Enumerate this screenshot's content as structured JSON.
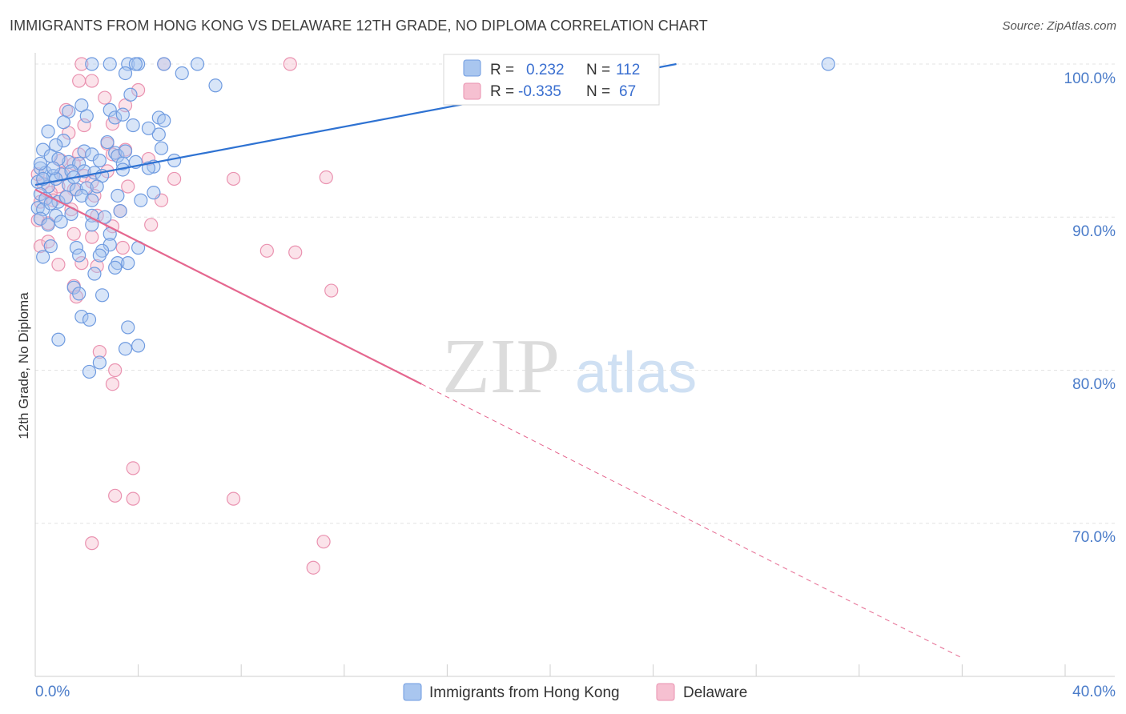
{
  "title": "IMMIGRANTS FROM HONG KONG VS DELAWARE 12TH GRADE, NO DIPLOMA CORRELATION CHART",
  "source": "Source: ZipAtlas.com",
  "watermark": {
    "zip": "ZIP",
    "atlas": "atlas"
  },
  "colors": {
    "blue_fill": "#a9c6ef",
    "blue_stroke": "#6f9be0",
    "blue_line": "#2e72d2",
    "pink_fill": "#f6c0d1",
    "pink_stroke": "#ea92b0",
    "pink_line": "#e5678f",
    "tick_text": "#4b7cc9",
    "grid": "#e3e3e3"
  },
  "stats": {
    "r_label": "R =",
    "n_label": "N =",
    "series1": {
      "r": "0.232",
      "n": "112"
    },
    "series2": {
      "r": "-0.335",
      "n": "67"
    }
  },
  "chart_data": {
    "type": "scatter",
    "title": "IMMIGRANTS FROM HONG KONG VS DELAWARE 12TH GRADE, NO DIPLOMA CORRELATION CHART",
    "xlabel": "",
    "ylabel": "12th Grade, No Diploma",
    "xlim": [
      0,
      40
    ],
    "ylim": [
      60,
      100
    ],
    "x_tick_labels": [
      "0.0%",
      "40.0%"
    ],
    "y_ticks": [
      {
        "value": 100,
        "label": "100.0%"
      },
      {
        "value": 90,
        "label": "90.0%"
      },
      {
        "value": 80,
        "label": "80.0%"
      },
      {
        "value": 70,
        "label": "70.0%"
      }
    ],
    "legend": [
      "Immigrants from Hong Kong",
      "Delaware"
    ],
    "series": [
      {
        "name": "Immigrants from Hong Kong",
        "r": 0.232,
        "n": 112,
        "trend": {
          "x0": 0.0,
          "y0": 92.1,
          "x1": 24.9,
          "y1": 100.0
        },
        "points": [
          [
            3.6,
            100
          ],
          [
            4.0,
            100
          ],
          [
            2.2,
            100
          ],
          [
            2.9,
            100
          ],
          [
            3.9,
            100
          ],
          [
            6.3,
            100
          ],
          [
            5.0,
            100
          ],
          [
            30.8,
            100
          ],
          [
            3.5,
            99.4
          ],
          [
            5.7,
            99.4
          ],
          [
            7.0,
            98.6
          ],
          [
            3.7,
            98.0
          ],
          [
            1.8,
            97.3
          ],
          [
            1.3,
            96.9
          ],
          [
            2.9,
            97.0
          ],
          [
            3.1,
            96.5
          ],
          [
            2.0,
            96.6
          ],
          [
            1.1,
            96.2
          ],
          [
            3.4,
            96.7
          ],
          [
            4.8,
            96.5
          ],
          [
            5.0,
            96.3
          ],
          [
            3.8,
            96.0
          ],
          [
            0.5,
            95.6
          ],
          [
            1.1,
            95.0
          ],
          [
            2.8,
            94.9
          ],
          [
            4.8,
            95.4
          ],
          [
            4.4,
            95.8
          ],
          [
            0.8,
            94.7
          ],
          [
            0.3,
            94.4
          ],
          [
            1.9,
            94.3
          ],
          [
            2.2,
            94.1
          ],
          [
            3.1,
            94.2
          ],
          [
            3.2,
            94.0
          ],
          [
            3.5,
            94.3
          ],
          [
            4.9,
            94.5
          ],
          [
            0.6,
            94.0
          ],
          [
            1.3,
            93.6
          ],
          [
            1.7,
            93.5
          ],
          [
            2.5,
            93.7
          ],
          [
            3.4,
            93.5
          ],
          [
            3.9,
            93.6
          ],
          [
            4.6,
            93.3
          ],
          [
            5.4,
            93.7
          ],
          [
            0.2,
            93.2
          ],
          [
            0.4,
            92.9
          ],
          [
            0.7,
            92.7
          ],
          [
            1.0,
            92.8
          ],
          [
            1.4,
            93.0
          ],
          [
            1.9,
            93.0
          ],
          [
            2.3,
            92.9
          ],
          [
            2.6,
            92.7
          ],
          [
            3.4,
            93.1
          ],
          [
            4.4,
            93.2
          ],
          [
            0.1,
            92.3
          ],
          [
            0.5,
            92.0
          ],
          [
            0.8,
            92.5
          ],
          [
            1.3,
            92.1
          ],
          [
            1.6,
            91.8
          ],
          [
            2.0,
            91.9
          ],
          [
            2.4,
            92.0
          ],
          [
            0.2,
            91.5
          ],
          [
            0.4,
            91.2
          ],
          [
            0.9,
            91.0
          ],
          [
            1.2,
            91.3
          ],
          [
            1.8,
            91.4
          ],
          [
            2.2,
            91.1
          ],
          [
            3.2,
            91.4
          ],
          [
            4.1,
            91.1
          ],
          [
            4.6,
            91.6
          ],
          [
            0.1,
            90.6
          ],
          [
            0.3,
            90.5
          ],
          [
            0.6,
            90.9
          ],
          [
            0.8,
            90.1
          ],
          [
            1.4,
            90.2
          ],
          [
            2.2,
            90.1
          ],
          [
            2.7,
            90.0
          ],
          [
            3.3,
            90.4
          ],
          [
            0.2,
            89.9
          ],
          [
            0.5,
            89.5
          ],
          [
            1.0,
            89.7
          ],
          [
            2.2,
            89.5
          ],
          [
            2.9,
            88.9
          ],
          [
            0.6,
            88.1
          ],
          [
            1.6,
            88.0
          ],
          [
            2.9,
            88.2
          ],
          [
            4.0,
            88.0
          ],
          [
            0.3,
            87.4
          ],
          [
            1.7,
            87.5
          ],
          [
            2.6,
            87.8
          ],
          [
            2.5,
            87.5
          ],
          [
            3.2,
            87.0
          ],
          [
            3.6,
            87.0
          ],
          [
            3.1,
            86.7
          ],
          [
            2.3,
            86.3
          ],
          [
            1.5,
            85.4
          ],
          [
            1.7,
            85.0
          ],
          [
            2.6,
            84.9
          ],
          [
            1.8,
            83.5
          ],
          [
            2.1,
            83.3
          ],
          [
            3.6,
            82.8
          ],
          [
            0.9,
            82.0
          ],
          [
            4.0,
            81.6
          ],
          [
            3.5,
            81.4
          ],
          [
            2.5,
            80.5
          ],
          [
            2.1,
            79.9
          ],
          [
            0.2,
            93.5
          ],
          [
            0.3,
            92.5
          ],
          [
            0.9,
            93.8
          ],
          [
            1.5,
            92.6
          ],
          [
            0.7,
            93.2
          ]
        ]
      },
      {
        "name": "Delaware",
        "r": -0.335,
        "n": 67,
        "trend": {
          "x0": 0.0,
          "y0": 91.8,
          "x1": 15.0,
          "y1": 79.1,
          "dash_x1": 36.0,
          "dash_y1": 61.2
        },
        "points": [
          [
            1.8,
            100
          ],
          [
            5.0,
            100
          ],
          [
            9.9,
            100
          ],
          [
            1.7,
            98.9
          ],
          [
            2.2,
            98.9
          ],
          [
            4.0,
            98.3
          ],
          [
            2.7,
            97.8
          ],
          [
            3.5,
            97.3
          ],
          [
            1.2,
            97.0
          ],
          [
            3.0,
            96.1
          ],
          [
            1.3,
            95.5
          ],
          [
            1.9,
            96.0
          ],
          [
            3.5,
            94.4
          ],
          [
            1.7,
            94.1
          ],
          [
            2.8,
            94.8
          ],
          [
            3.0,
            94.1
          ],
          [
            4.4,
            93.8
          ],
          [
            1.0,
            93.7
          ],
          [
            1.5,
            93.5
          ],
          [
            2.8,
            93.0
          ],
          [
            1.1,
            92.8
          ],
          [
            1.9,
            92.7
          ],
          [
            5.4,
            92.5
          ],
          [
            7.7,
            92.5
          ],
          [
            11.3,
            92.6
          ],
          [
            0.3,
            92.2
          ],
          [
            0.9,
            92.0
          ],
          [
            1.5,
            91.8
          ],
          [
            2.2,
            92.3
          ],
          [
            3.6,
            92.0
          ],
          [
            0.6,
            91.6
          ],
          [
            1.2,
            91.3
          ],
          [
            2.3,
            91.4
          ],
          [
            0.2,
            91.0
          ],
          [
            0.7,
            91.1
          ],
          [
            1.4,
            90.5
          ],
          [
            3.3,
            90.4
          ],
          [
            4.9,
            91.1
          ],
          [
            2.4,
            90.1
          ],
          [
            0.1,
            89.8
          ],
          [
            0.5,
            89.6
          ],
          [
            3.0,
            89.4
          ],
          [
            4.5,
            89.5
          ],
          [
            1.5,
            88.9
          ],
          [
            2.2,
            88.7
          ],
          [
            0.2,
            88.1
          ],
          [
            0.5,
            88.4
          ],
          [
            3.4,
            88.0
          ],
          [
            9.0,
            87.8
          ],
          [
            10.1,
            87.7
          ],
          [
            1.8,
            87.0
          ],
          [
            0.9,
            86.9
          ],
          [
            2.4,
            86.8
          ],
          [
            1.5,
            85.5
          ],
          [
            1.6,
            84.8
          ],
          [
            11.5,
            85.2
          ],
          [
            2.5,
            81.2
          ],
          [
            3.1,
            80.0
          ],
          [
            3.0,
            79.1
          ],
          [
            3.8,
            73.6
          ],
          [
            3.1,
            71.8
          ],
          [
            3.8,
            71.6
          ],
          [
            7.7,
            71.6
          ],
          [
            2.2,
            68.7
          ],
          [
            11.2,
            68.8
          ],
          [
            10.8,
            67.1
          ],
          [
            0.1,
            92.8
          ]
        ]
      }
    ]
  }
}
